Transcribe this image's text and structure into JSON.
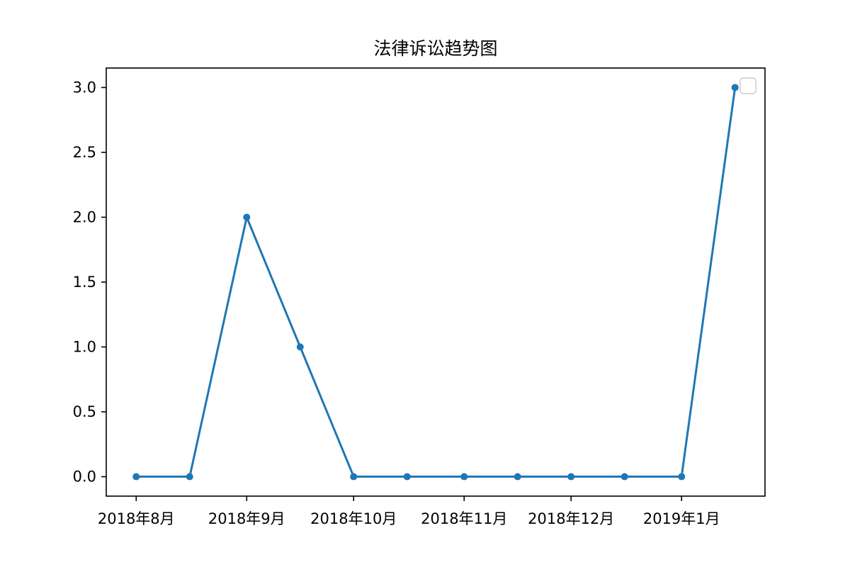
{
  "chart_data": {
    "type": "line",
    "title": "法律诉讼趋势图",
    "xlabel": "",
    "ylabel": "",
    "x": [
      "2018-08-01",
      "2018-08-16",
      "2018-09-01",
      "2018-09-16",
      "2018-10-01",
      "2018-10-16",
      "2018-11-01",
      "2018-11-16",
      "2018-12-01",
      "2018-12-16",
      "2019-01-01",
      "2019-01-16"
    ],
    "series": [
      {
        "values": [
          0,
          0,
          2,
          1,
          0,
          0,
          0,
          0,
          0,
          0,
          0,
          3
        ],
        "color": "#1f77b4"
      }
    ],
    "xticks": [
      {
        "date": "2018-08-01",
        "label": "2018年8月"
      },
      {
        "date": "2018-09-01",
        "label": "2018年9月"
      },
      {
        "date": "2018-10-01",
        "label": "2018年10月"
      },
      {
        "date": "2018-11-01",
        "label": "2018年11月"
      },
      {
        "date": "2018-12-01",
        "label": "2018年12月"
      },
      {
        "date": "2019-01-01",
        "label": "2019年1月"
      }
    ],
    "yticks": [
      "0.0",
      "0.5",
      "1.0",
      "1.5",
      "2.0",
      "2.5",
      "3.0"
    ],
    "ylim": [
      -0.15,
      3.15
    ],
    "grid": false,
    "legend": "top-right"
  }
}
